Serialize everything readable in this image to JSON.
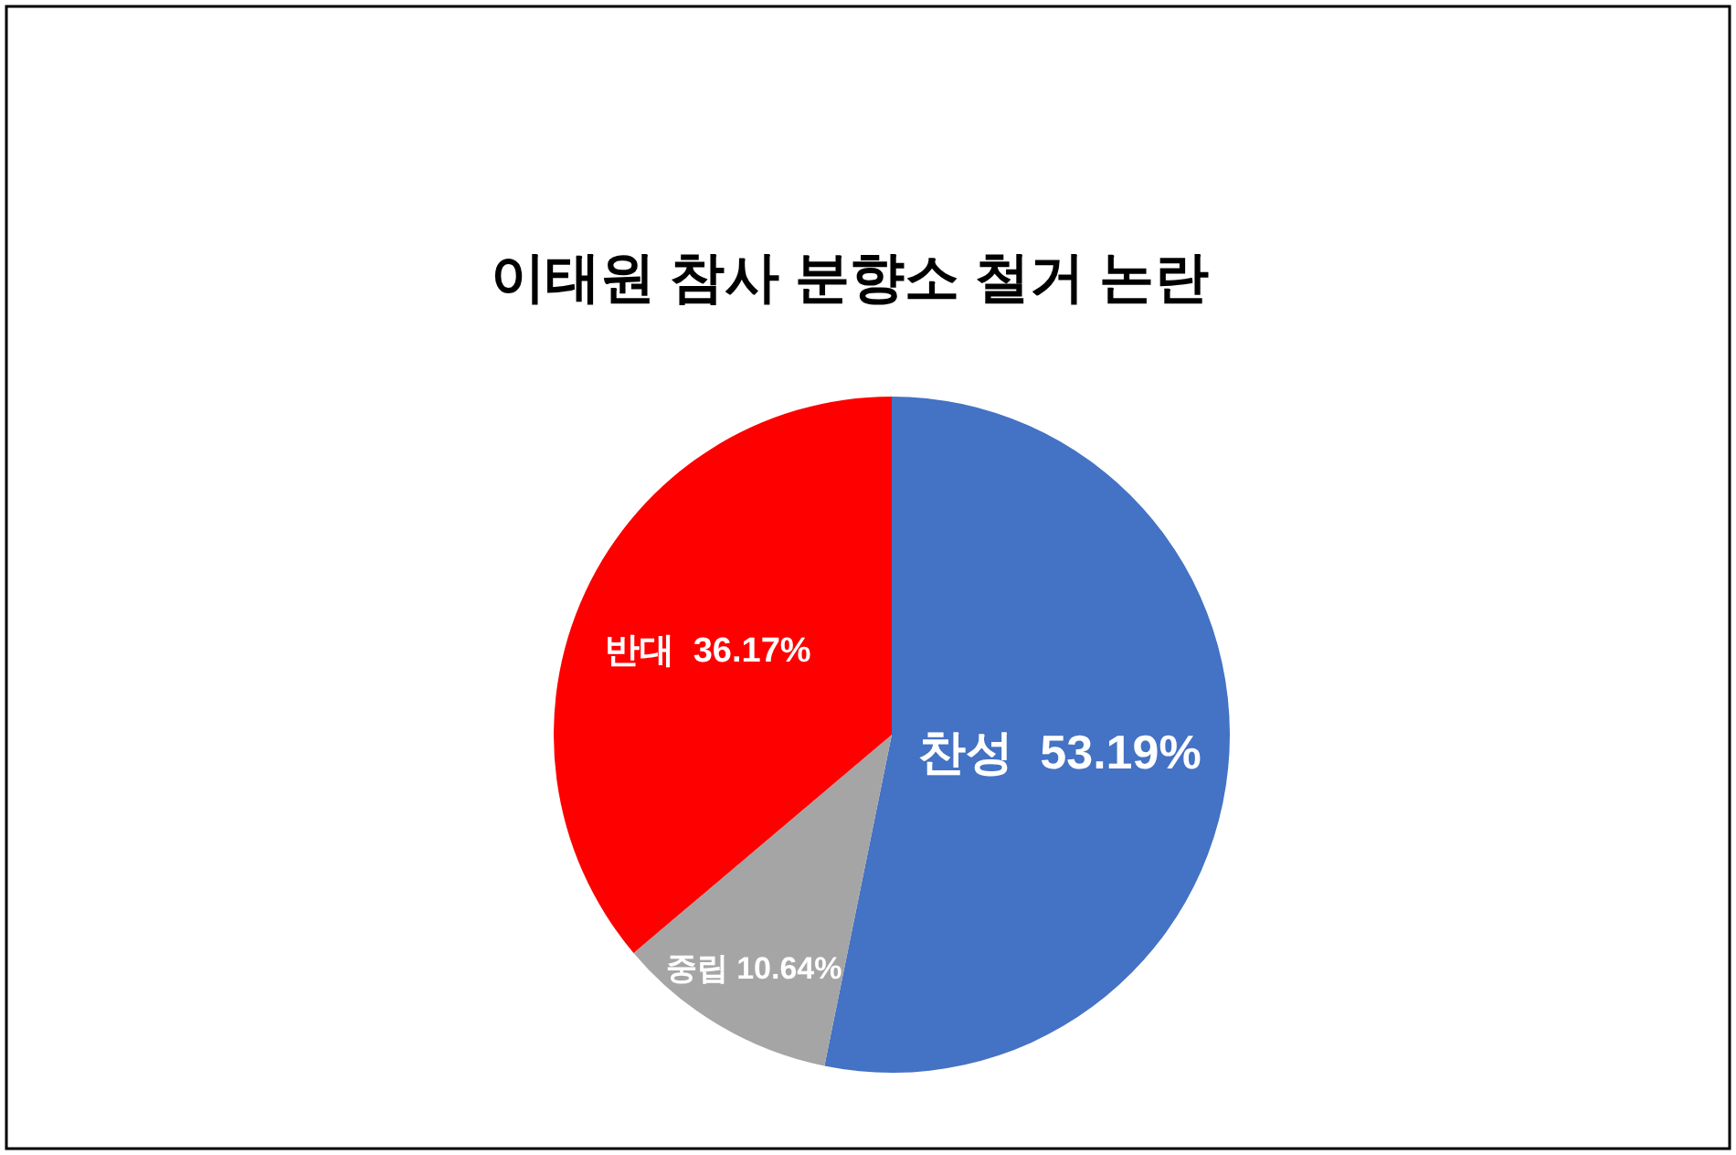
{
  "chart_data": {
    "type": "pie",
    "title": "이태원 참사 분향소 철거 논란",
    "categories": [
      "찬성",
      "중립",
      "반대"
    ],
    "values": [
      53.19,
      10.64,
      36.17
    ],
    "colors": [
      "#4472c4",
      "#a5a5a5",
      "#ff0000"
    ],
    "value_labels": [
      "53.19%",
      "10.64%",
      "36.17%"
    ]
  }
}
